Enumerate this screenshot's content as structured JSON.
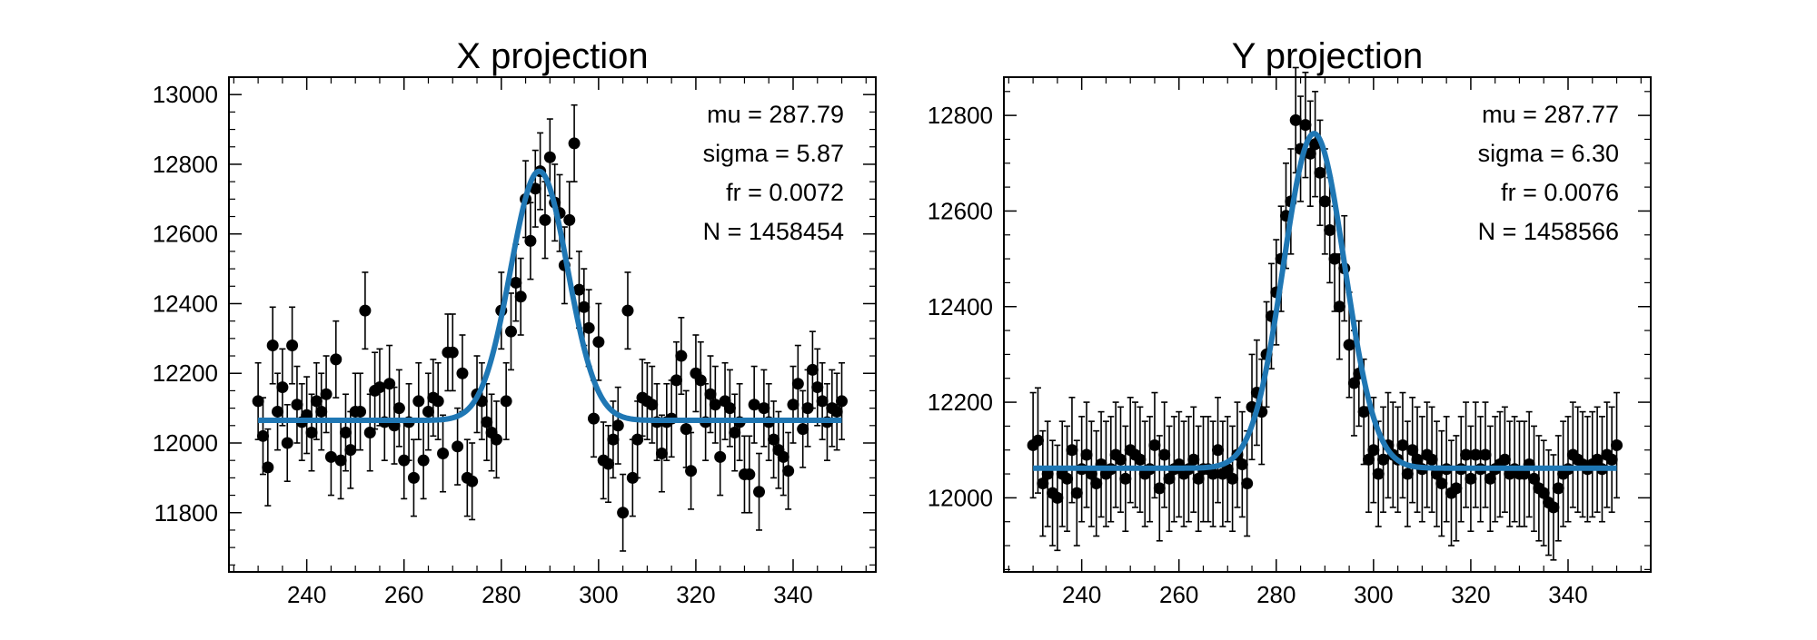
{
  "chart_data": [
    {
      "type": "scatter",
      "title": "X projection",
      "xlabel": "",
      "ylabel": "",
      "xlim": [
        224,
        357
      ],
      "ylim": [
        11630,
        13050
      ],
      "xticks": [
        240,
        260,
        280,
        300,
        320,
        340
      ],
      "yticks": [
        11800,
        12000,
        12200,
        12400,
        12600,
        12800,
        13000
      ],
      "xtick_labels": [
        "240",
        "260",
        "280",
        "300",
        "320",
        "340"
      ],
      "ytick_labels": [
        "11800",
        "12000",
        "12200",
        "12400",
        "12600",
        "12800",
        "13000"
      ],
      "annotations": [
        "mu = 287.79",
        "sigma = 5.87",
        "fr = 0.0072",
        "N = 1458454"
      ],
      "fit": {
        "mu": 287.79,
        "sigma": 5.87,
        "baseline": 12065,
        "amplitude": 715,
        "color": "#1f77b4"
      },
      "marker_color": "#000000",
      "error": 110,
      "x": [
        230,
        231,
        232,
        233,
        234,
        235,
        236,
        237,
        238,
        239,
        240,
        241,
        242,
        243,
        244,
        245,
        246,
        247,
        248,
        249,
        250,
        251,
        252,
        253,
        254,
        255,
        256,
        257,
        258,
        259,
        260,
        261,
        262,
        263,
        264,
        265,
        266,
        267,
        268,
        269,
        270,
        271,
        272,
        273,
        274,
        275,
        276,
        277,
        278,
        279,
        280,
        281,
        282,
        283,
        284,
        285,
        286,
        287,
        288,
        289,
        290,
        291,
        292,
        293,
        294,
        295,
        296,
        297,
        298,
        299,
        300,
        301,
        302,
        303,
        304,
        305,
        306,
        307,
        308,
        309,
        310,
        311,
        312,
        313,
        314,
        315,
        316,
        317,
        318,
        319,
        320,
        321,
        322,
        323,
        324,
        325,
        326,
        327,
        328,
        329,
        330,
        331,
        332,
        333,
        334,
        335,
        336,
        337,
        338,
        339,
        340,
        341,
        342,
        343,
        344,
        345,
        346,
        347,
        348,
        349,
        350
      ],
      "y": [
        12120,
        12020,
        11930,
        12280,
        12090,
        12160,
        12000,
        12280,
        12110,
        12060,
        12080,
        12030,
        12120,
        12090,
        12140,
        11960,
        12240,
        11950,
        12030,
        11980,
        12090,
        12090,
        12380,
        12030,
        12150,
        12160,
        12060,
        12170,
        12050,
        12100,
        11950,
        12060,
        11900,
        12120,
        11950,
        12090,
        12130,
        12120,
        11970,
        12260,
        12260,
        11990,
        12200,
        11900,
        11890,
        12140,
        12120,
        12060,
        12030,
        12010,
        12380,
        12120,
        12320,
        12460,
        12420,
        12700,
        12580,
        12730,
        12780,
        12640,
        12820,
        12690,
        12660,
        12510,
        12640,
        12860,
        12440,
        12390,
        12330,
        12070,
        12290,
        11950,
        11940,
        12010,
        12050,
        11800,
        12380,
        11900,
        12010,
        12130,
        12120,
        12110,
        12060,
        11970,
        12060,
        12070,
        12180,
        12250,
        12040,
        11920,
        12200,
        12180,
        12060,
        12140,
        12110,
        11960,
        12120,
        12100,
        12030,
        12060,
        11910,
        11910,
        12110,
        11860,
        12100,
        12060,
        12010,
        11980,
        11960,
        11920,
        12110,
        12170,
        12040,
        12100,
        12210,
        12160,
        12120,
        12060,
        12100,
        12090,
        12120
      ]
    },
    {
      "type": "scatter",
      "title": "Y projection",
      "xlabel": "",
      "ylabel": "",
      "xlim": [
        224,
        357
      ],
      "ylim": [
        11845,
        12880
      ],
      "xticks": [
        240,
        260,
        280,
        300,
        320,
        340
      ],
      "yticks": [
        12000,
        12200,
        12400,
        12600,
        12800
      ],
      "xtick_labels": [
        "240",
        "260",
        "280",
        "300",
        "320",
        "340"
      ],
      "ytick_labels": [
        "12000",
        "12200",
        "12400",
        "12600",
        "12800"
      ],
      "annotations": [
        "mu = 287.77",
        "sigma = 6.30",
        "fr = 0.0076",
        "N = 1458566"
      ],
      "fit": {
        "mu": 287.77,
        "sigma": 6.3,
        "baseline": 12062,
        "amplitude": 700,
        "color": "#1f77b4"
      },
      "marker_color": "#000000",
      "error": 110,
      "x": [
        230,
        231,
        232,
        233,
        234,
        235,
        236,
        237,
        238,
        239,
        240,
        241,
        242,
        243,
        244,
        245,
        246,
        247,
        248,
        249,
        250,
        251,
        252,
        253,
        254,
        255,
        256,
        257,
        258,
        259,
        260,
        261,
        262,
        263,
        264,
        265,
        266,
        267,
        268,
        269,
        270,
        271,
        272,
        273,
        274,
        275,
        276,
        277,
        278,
        279,
        280,
        281,
        282,
        283,
        284,
        285,
        286,
        287,
        288,
        289,
        290,
        291,
        292,
        293,
        294,
        295,
        296,
        297,
        298,
        299,
        300,
        301,
        302,
        303,
        304,
        305,
        306,
        307,
        308,
        309,
        310,
        311,
        312,
        313,
        314,
        315,
        316,
        317,
        318,
        319,
        320,
        321,
        322,
        323,
        324,
        325,
        326,
        327,
        328,
        329,
        330,
        331,
        332,
        333,
        334,
        335,
        336,
        337,
        338,
        339,
        340,
        341,
        342,
        343,
        344,
        345,
        346,
        347,
        348,
        349,
        350
      ],
      "y": [
        12110,
        12120,
        12030,
        12050,
        12010,
        12000,
        12050,
        12040,
        12100,
        12010,
        12060,
        12090,
        12050,
        12030,
        12070,
        12050,
        12060,
        12090,
        12080,
        12040,
        12100,
        12090,
        12080,
        12050,
        12060,
        12110,
        12020,
        12090,
        12040,
        12060,
        12070,
        12050,
        12060,
        12080,
        12040,
        12060,
        12060,
        12050,
        12100,
        12050,
        12060,
        12040,
        12090,
        12070,
        12030,
        12190,
        12220,
        12180,
        12300,
        12380,
        12430,
        12500,
        12590,
        12620,
        12790,
        12730,
        12780,
        12720,
        12740,
        12680,
        12620,
        12560,
        12500,
        12400,
        12480,
        12320,
        12240,
        12260,
        12180,
        12080,
        12100,
        12050,
        12080,
        12110,
        12090,
        12080,
        12110,
        12050,
        12100,
        12080,
        12060,
        12090,
        12080,
        12050,
        12030,
        12060,
        12010,
        12020,
        12060,
        12090,
        12040,
        12090,
        12060,
        12090,
        12040,
        12060,
        12070,
        12080,
        12050,
        12060,
        12050,
        12050,
        12070,
        12040,
        12020,
        12010,
        11990,
        11980,
        12020,
        12050,
        12060,
        12090,
        12080,
        12070,
        12060,
        12070,
        12080,
        12060,
        12090,
        12080,
        12110
      ]
    }
  ]
}
